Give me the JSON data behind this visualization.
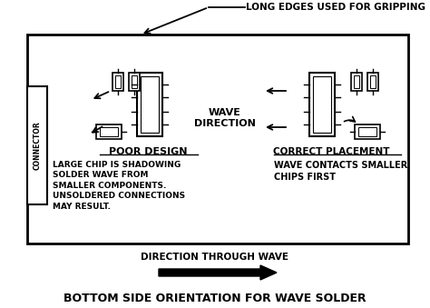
{
  "title": "BOTTOM SIDE ORIENTATION FOR WAVE SOLDER",
  "top_label": "LONG EDGES USED FOR GRIPPING",
  "connector_label": "CONNECTOR",
  "wave_direction_label": "WAVE\nDIRECTION",
  "poor_design_label": "POOR DESIGN",
  "correct_placement_label": "CORRECT PLACEMENT",
  "poor_desc": "LARGE CHIP IS SHADOWING\nSOLDER WAVE FROM\nSMALLER COMPONENTS.\nUNSOLDERED CONNECTIONS\nMAY RESULT.",
  "correct_desc": "WAVE CONTACTS SMALLER\nCHIPS FIRST",
  "direction_label": "DIRECTION THROUGH WAVE",
  "bg_color": "#ffffff",
  "fig_width": 4.74,
  "fig_height": 3.39,
  "dpi": 100
}
